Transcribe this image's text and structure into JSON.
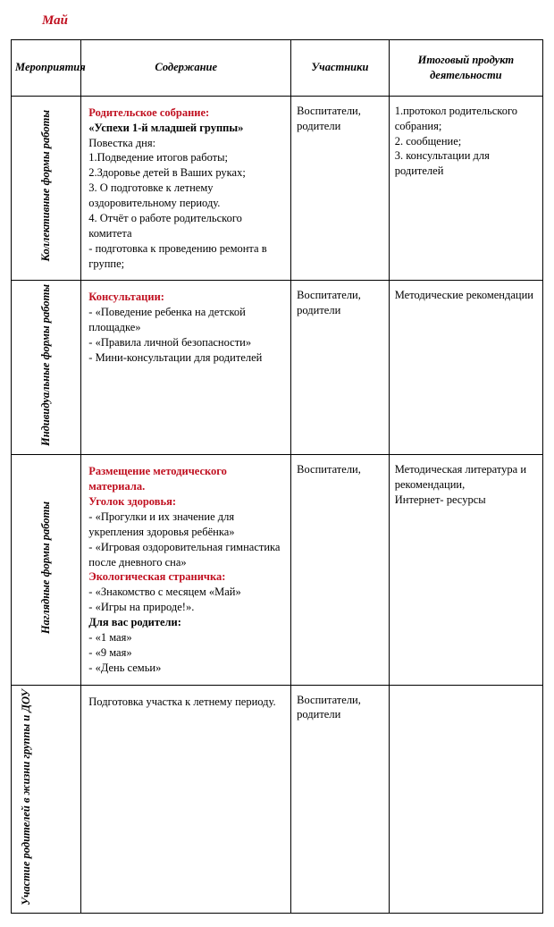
{
  "colors": {
    "red": "#c01020",
    "black": "#000000",
    "border": "#000000",
    "background": "#ffffff"
  },
  "title": "Май",
  "headers": {
    "col1": "Мероприятия",
    "col2": "Содержание",
    "col3": "Участники",
    "col4": "Итоговый продукт деятельности"
  },
  "rows": [
    {
      "category": "Коллективные формы работы",
      "content": {
        "h1_red": "Родительское собрание:",
        "h2_bold": "«Успехи 1-й младшей группы»",
        "lines": [
          "Повестка дня:",
          "1.Подведение итогов работы;",
          "2.Здоровье детей в Ваших руках;",
          "3. О подготовке к летнему оздоровительному периоду.",
          "4. Отчёт о работе родительского комитета",
          "- подготовка к проведению ремонта в группе;"
        ]
      },
      "participants": "Воспитатели, родители",
      "result": "1.протокол родительского собрания;\n2. сообщение;\n3. консультации для родителей"
    },
    {
      "category": "Индивидуальные формы работы",
      "content": {
        "h1_red": "Консультации:",
        "lines": [
          "- «Поведение ребенка на детской площадке»",
          "- «Правила личной безопасности»",
          "- Мини-консультации для родителей"
        ]
      },
      "participants": "Воспитатели, родители",
      "result": "Методические рекомендации"
    },
    {
      "category": "Наглядные формы работы",
      "content": {
        "blocks": [
          {
            "red": "Размещение  методического материала."
          },
          {
            "red": "Уголок здоровья:"
          },
          {
            "plain": "- «Прогулки и их значение для укрепления здоровья ребёнка»"
          },
          {
            "plain": "- «Игровая оздоровительная гимнастика после дневного сна»"
          },
          {
            "red": "Экологическая страничка:"
          },
          {
            "plain": "- «Знакомство с месяцем «Май»"
          },
          {
            "plain": "- «Игры на природе!»."
          },
          {
            "bold": "Для вас родители:"
          },
          {
            "plain": "- «1 мая»"
          },
          {
            "plain": "- «9 мая»"
          },
          {
            "plain": "- «День семьи»"
          }
        ]
      },
      "participants": "Воспитатели,",
      "result": "Методическая литература и рекомендации,\nИнтернет- ресурсы"
    },
    {
      "category": "Участие родителей в жизни группы и ДОУ",
      "content": {
        "lines": [
          "Подготовка участка к летнему периоду."
        ]
      },
      "participants": "Воспитатели, родители",
      "result": ""
    }
  ]
}
